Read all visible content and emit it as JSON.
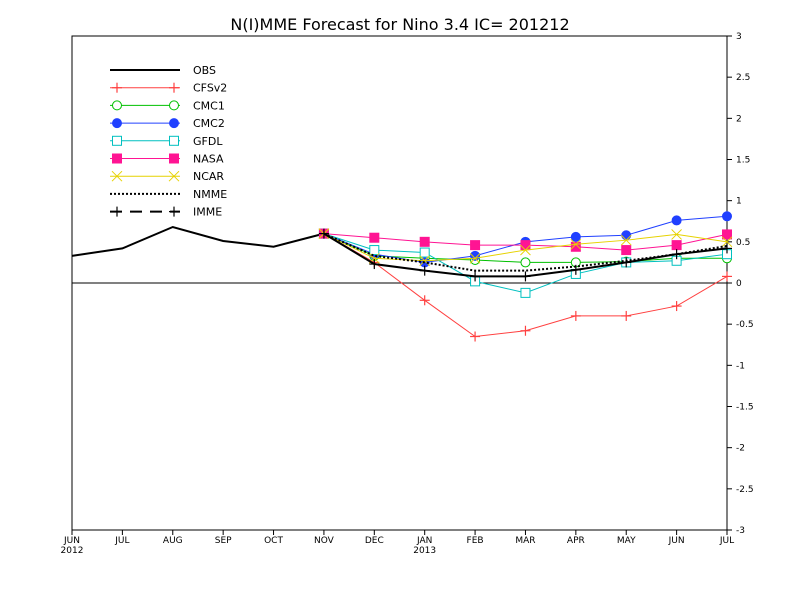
{
  "chart_data": {
    "type": "line",
    "title": "N(I)MME Forecast for Nino 3.4   IC= 201212",
    "x": [
      "JUN",
      "JUL",
      "AUG",
      "SEP",
      "OCT",
      "NOV",
      "DEC",
      "JAN",
      "FEB",
      "MAR",
      "APR",
      "MAY",
      "JUN",
      "JUL"
    ],
    "x_year_labels": [
      "2012",
      "",
      "",
      "",
      "",
      "",
      "",
      "2013",
      "",
      "",
      "",
      "",
      "",
      ""
    ],
    "ylim": [
      -3,
      3
    ],
    "y_ticks": [
      3,
      2.5,
      2,
      1.5,
      1,
      0.5,
      0,
      -0.5,
      -1,
      -1.5,
      -2,
      -2.5,
      -3
    ],
    "y_tick_labels": [
      "3",
      "2.5",
      "2",
      "1.5",
      "1",
      "0.5",
      "0",
      "-0.5",
      "-1",
      "-1.5",
      "-2",
      "-2.5",
      "-3"
    ],
    "y_axis_side": "right",
    "zero_line": true,
    "grid": false,
    "legend_position": "top-left",
    "series": [
      {
        "name": "OBS",
        "color": "#000000",
        "marker": "none",
        "dash": "solid",
        "width": 2,
        "values": [
          0.33,
          0.42,
          0.68,
          0.51,
          0.44,
          0.6,
          null,
          null,
          null,
          null,
          null,
          null,
          null,
          null
        ]
      },
      {
        "name": "CFSv2",
        "color": "#ff4040",
        "marker": "plus",
        "dash": "solid",
        "width": 1,
        "values": [
          null,
          null,
          null,
          null,
          null,
          0.6,
          0.25,
          -0.21,
          -0.65,
          -0.58,
          -0.4,
          -0.4,
          -0.28,
          0.08
        ]
      },
      {
        "name": "CMC1",
        "color": "#00c000",
        "marker": "circle-open",
        "dash": "solid",
        "width": 1,
        "values": [
          null,
          null,
          null,
          null,
          null,
          0.6,
          0.33,
          0.3,
          0.28,
          0.25,
          0.25,
          0.26,
          0.3,
          0.3
        ]
      },
      {
        "name": "CMC2",
        "color": "#2040ff",
        "marker": "circle-filled",
        "dash": "solid",
        "width": 1,
        "values": [
          null,
          null,
          null,
          null,
          null,
          0.6,
          0.35,
          0.25,
          0.33,
          0.5,
          0.56,
          0.58,
          0.76,
          0.81
        ]
      },
      {
        "name": "GFDL",
        "color": "#00c0c0",
        "marker": "square-open",
        "dash": "solid",
        "width": 1,
        "values": [
          null,
          null,
          null,
          null,
          null,
          0.6,
          0.4,
          0.37,
          0.02,
          -0.12,
          0.11,
          0.25,
          0.27,
          0.35
        ]
      },
      {
        "name": "NASA",
        "color": "#ff1493",
        "marker": "square-filled",
        "dash": "solid",
        "width": 1,
        "values": [
          null,
          null,
          null,
          null,
          null,
          0.6,
          0.55,
          0.5,
          0.46,
          0.46,
          0.44,
          0.4,
          0.46,
          0.59
        ]
      },
      {
        "name": "NCAR",
        "color": "#e6d200",
        "marker": "cross",
        "dash": "solid",
        "width": 1,
        "values": [
          null,
          null,
          null,
          null,
          null,
          0.6,
          0.3,
          0.27,
          0.3,
          0.4,
          0.47,
          0.52,
          0.59,
          0.5
        ]
      },
      {
        "name": "NMME",
        "color": "#000000",
        "marker": "none",
        "dash": "dotted",
        "width": 2,
        "values": [
          null,
          null,
          null,
          null,
          null,
          0.6,
          0.33,
          0.25,
          0.15,
          0.15,
          0.2,
          0.27,
          0.35,
          0.45
        ]
      },
      {
        "name": "IMME",
        "color": "#000000",
        "marker": "plus",
        "dash": "solid",
        "width": 2,
        "values": [
          null,
          null,
          null,
          null,
          null,
          0.6,
          0.23,
          0.15,
          0.08,
          0.08,
          0.16,
          0.25,
          0.35,
          0.42
        ]
      }
    ],
    "legend_sample_dash": {
      "OBS": "solid",
      "CFSv2": "solid",
      "CMC1": "solid",
      "CMC2": "solid",
      "GFDL": "solid",
      "NASA": "solid",
      "NCAR": "solid",
      "NMME": "dotted",
      "IMME": "long-dash"
    }
  }
}
